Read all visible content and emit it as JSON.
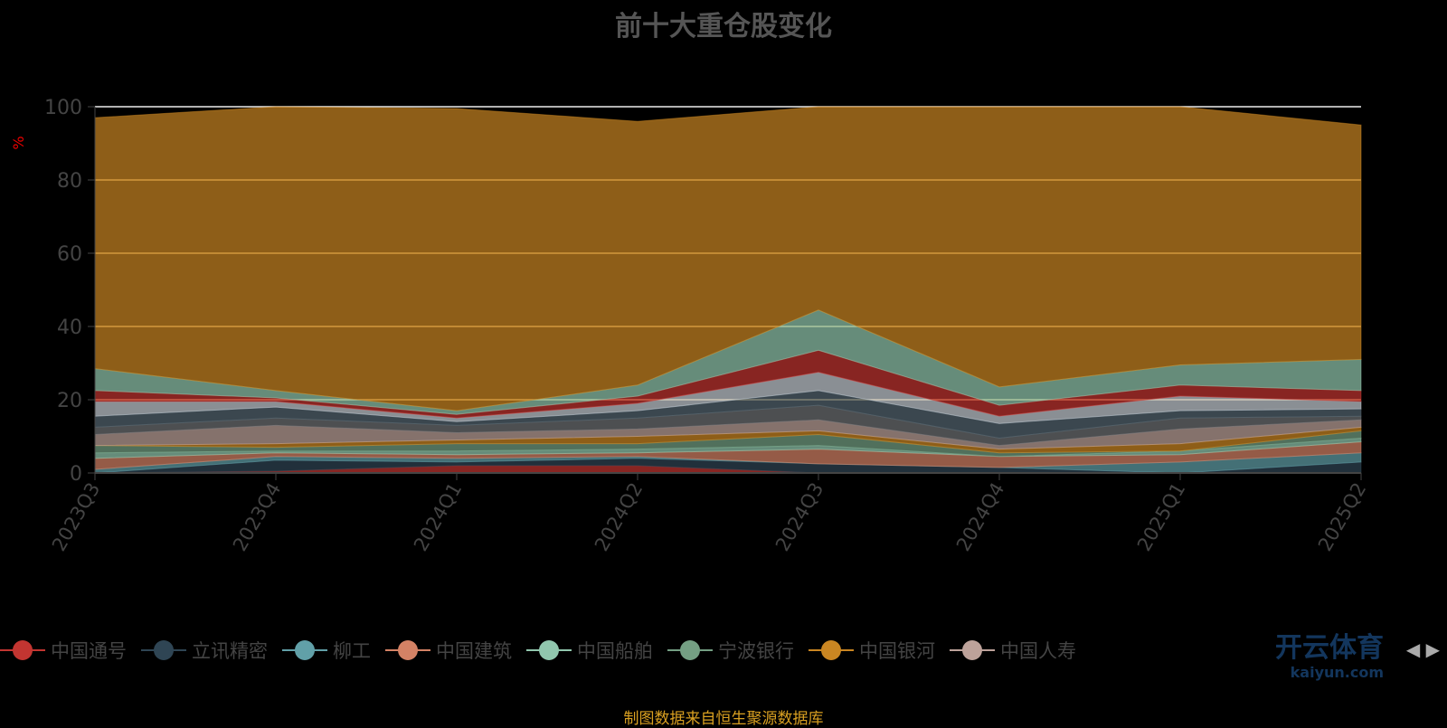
{
  "chart_data": {
    "type": "area",
    "stacked": true,
    "title": "前十大重仓股变化",
    "ylabel": "%",
    "xlabel": "",
    "ylim": [
      0,
      100
    ],
    "yticks": [
      0,
      20,
      40,
      60,
      80,
      100
    ],
    "grid": true,
    "legend_position": "bottom",
    "categories": [
      "2023Q3",
      "2023Q4",
      "2024Q1",
      "2024Q2",
      "2024Q3",
      "2024Q4",
      "2025Q1",
      "2025Q2"
    ],
    "series": [
      {
        "name": "中国通号",
        "color": "#c23531",
        "values": [
          0,
          0.5,
          2,
          2,
          0,
          0,
          0,
          0
        ]
      },
      {
        "name": "立讯精密",
        "color": "#2f4554",
        "values": [
          0,
          3,
          1,
          2,
          2.5,
          1.5,
          0,
          3
        ]
      },
      {
        "name": "柳工",
        "color": "#61a0a8",
        "values": [
          1,
          1,
          1,
          0.5,
          0,
          0,
          3,
          2.5
        ]
      },
      {
        "name": "中国建筑",
        "color": "#d48265",
        "values": [
          3,
          1,
          1,
          1,
          4,
          3,
          2,
          3
        ]
      },
      {
        "name": "中国船舶",
        "color": "#91c7ae",
        "values": [
          1.5,
          0.5,
          1,
          1,
          1,
          0,
          1,
          1
        ]
      },
      {
        "name": "宁波银行",
        "color": "#749f83",
        "values": [
          2,
          1,
          2,
          1.5,
          3,
          1,
          0,
          2
        ]
      },
      {
        "name": "中国银河",
        "color": "#ca8622",
        "values": [
          0,
          1,
          1,
          2,
          1,
          1,
          2,
          1
        ]
      },
      {
        "name": "中国人寿",
        "color": "#bda29a",
        "values": [
          3,
          5,
          2,
          2,
          3,
          1,
          4,
          2
        ]
      },
      {
        "name": "",
        "color": "#6e7074",
        "values": [
          2,
          2,
          2,
          3,
          4,
          2,
          3,
          1
        ]
      },
      {
        "name": "",
        "color": "#546570",
        "values": [
          3,
          3,
          1,
          2,
          4,
          4,
          2,
          2
        ]
      },
      {
        "name": "",
        "color": "#c4ccd3",
        "values": [
          4,
          1.5,
          1,
          2,
          5,
          2,
          4,
          2
        ]
      },
      {
        "name": "",
        "color": "#c23531",
        "values": [
          3,
          1,
          1,
          2,
          6,
          3,
          3,
          3
        ]
      },
      {
        "name": "",
        "color": "#91c7ae",
        "values": [
          6,
          2,
          1,
          3,
          11,
          5,
          5.5,
          8.5
        ]
      },
      {
        "name": "",
        "color": "#ca8622",
        "values": [
          68.5,
          77.5,
          82.5,
          72,
          55.5,
          76.5,
          70.5,
          64
        ]
      }
    ]
  },
  "legend_items": [
    {
      "name": "中国通号",
      "color": "#c23531"
    },
    {
      "name": "立讯精密",
      "color": "#2f4554"
    },
    {
      "name": "柳工",
      "color": "#61a0a8"
    },
    {
      "name": "中国建筑",
      "color": "#d48265"
    },
    {
      "name": "中国船舶",
      "color": "#91c7ae"
    },
    {
      "name": "宁波银行",
      "color": "#749f83"
    },
    {
      "name": "中国银河",
      "color": "#ca8622"
    },
    {
      "name": "中国人寿",
      "color": "#bda29a"
    }
  ],
  "legend_nav": {
    "prev": "◀",
    "next": "▶"
  },
  "source": "制图数据来自恒生聚源数据库",
  "watermark": {
    "name": "开云体育",
    "url": "kaiyun.com"
  }
}
